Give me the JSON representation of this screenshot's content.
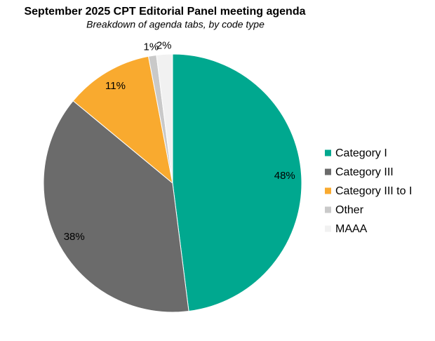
{
  "chart_data": {
    "type": "pie",
    "title": "September 2025 CPT Editorial Panel meeting agenda",
    "subtitle": "Breakdown of agenda tabs, by code type",
    "categories": [
      "Category I",
      "Category III",
      "Category III to I",
      "Other",
      "MAAA"
    ],
    "values": [
      48,
      38,
      11,
      1,
      2
    ],
    "value_labels": [
      "48%",
      "38%",
      "11%",
      "1%",
      "2%"
    ],
    "colors": [
      "#00a88f",
      "#6b6b6b",
      "#f9aa2f",
      "#c9c9c9",
      "#f1f1f1"
    ],
    "legend": "right"
  }
}
